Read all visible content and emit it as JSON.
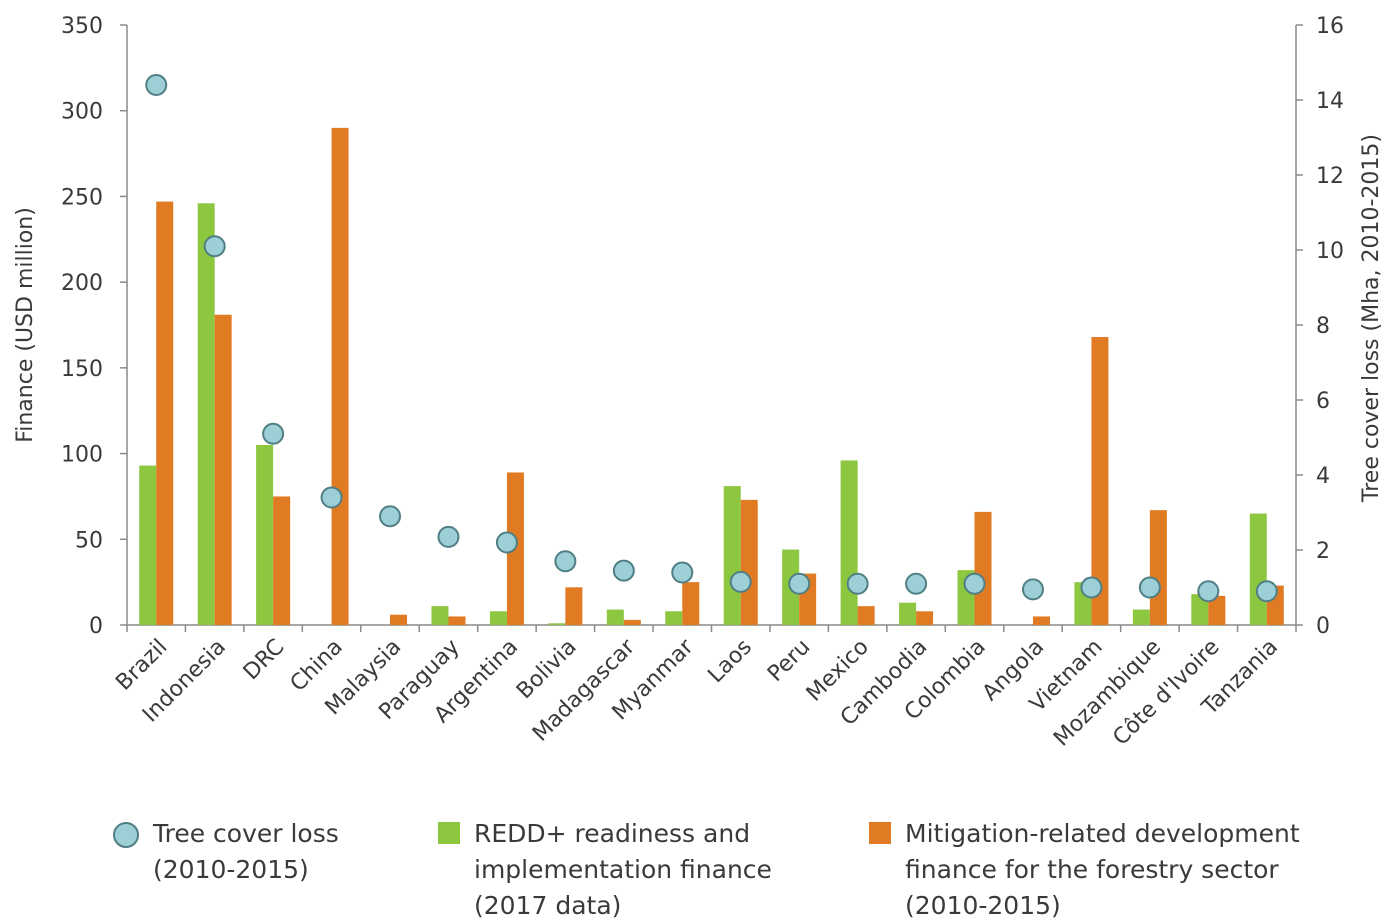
{
  "chart_data": {
    "type": "bar",
    "categories": [
      "Brazil",
      "Indonesia",
      "DRC",
      "China",
      "Malaysia",
      "Paraguay",
      "Argentina",
      "Bolivia",
      "Madagascar",
      "Myanmar",
      "Laos",
      "Peru",
      "Mexico",
      "Cambodia",
      "Colombia",
      "Angola",
      "Vietnam",
      "Mozambique",
      "Côte d'Ivoire",
      "Tanzania"
    ],
    "ylabel": "Finance (USD million)",
    "y2label": "Tree cover loss (Mha, 2010-2015)",
    "ylim": [
      0,
      350
    ],
    "y2lim": [
      0,
      16
    ],
    "yticks": [
      0,
      50,
      100,
      150,
      200,
      250,
      300,
      350
    ],
    "y2ticks": [
      0,
      2,
      4,
      6,
      8,
      10,
      12,
      14,
      16
    ],
    "grid": false,
    "legend_position": "bottom",
    "series": [
      {
        "name": "REDD+ readiness and\nimplementation finance\n(2017 data)",
        "kind": "bar",
        "axis": "left",
        "color": "#8dc63f",
        "values": [
          93,
          246,
          105,
          0,
          0,
          11,
          8,
          1,
          9,
          8,
          81,
          44,
          96,
          13,
          32,
          0,
          25,
          9,
          18,
          65
        ]
      },
      {
        "name": "Mitigation-related development\nfinance for the forestry sector\n(2010-2015)",
        "kind": "bar",
        "axis": "left",
        "color": "#e07b24",
        "values": [
          247,
          181,
          75,
          290,
          6,
          5,
          89,
          22,
          3,
          25,
          73,
          30,
          11,
          8,
          66,
          5,
          168,
          67,
          17,
          23
        ]
      },
      {
        "name": "Tree cover loss\n(2010-2015)",
        "kind": "scatter",
        "axis": "right",
        "color": "#9dcfd6",
        "edge_color": "#4f7f84",
        "values": [
          14.4,
          10.1,
          5.1,
          3.4,
          2.9,
          2.35,
          2.2,
          1.7,
          1.45,
          1.4,
          1.15,
          1.1,
          1.1,
          1.1,
          1.1,
          0.95,
          1.0,
          1.0,
          0.9,
          0.9
        ]
      }
    ]
  }
}
